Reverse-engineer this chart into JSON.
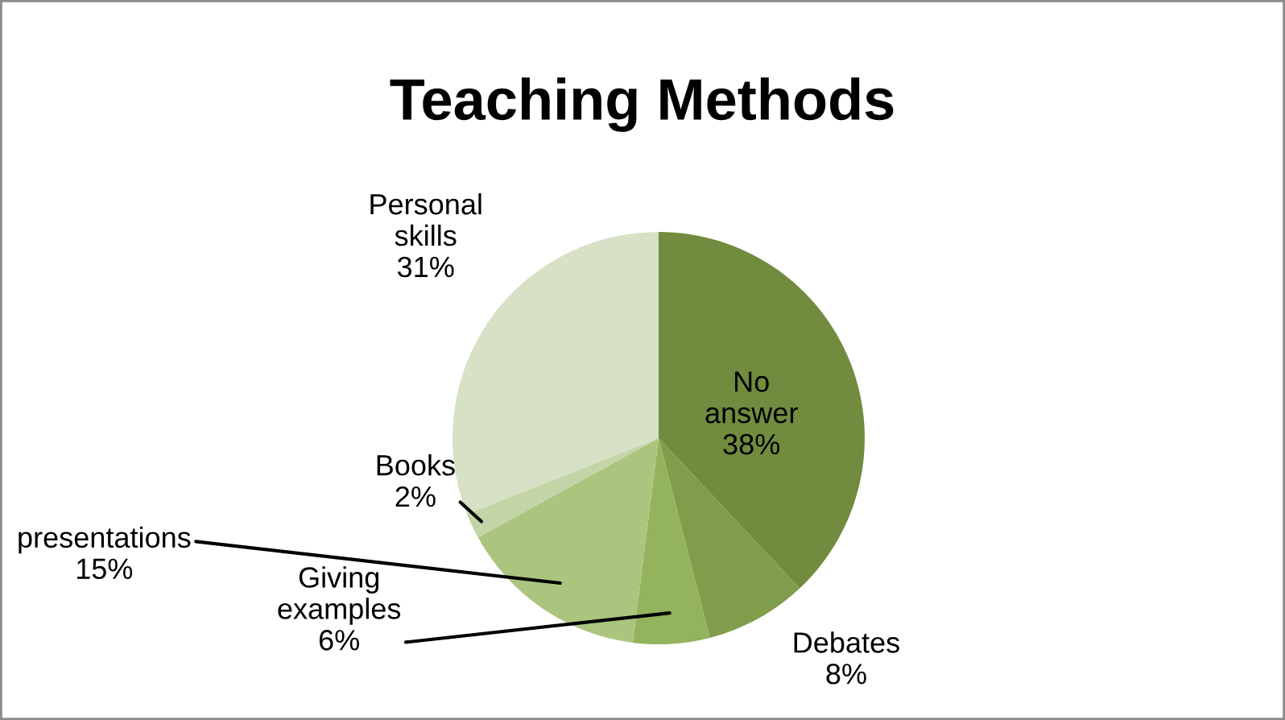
{
  "chart_data": {
    "type": "pie",
    "title": "Teaching Methods",
    "categories": [
      "No answer",
      "Debates",
      "Giving examples",
      "presentations",
      "Books",
      "Personal skills"
    ],
    "values": [
      38,
      8,
      6,
      15,
      2,
      31
    ],
    "colors": [
      "#718b3f",
      "#809d4b",
      "#93b35c",
      "#abc57f",
      "#c3d4a6",
      "#d7e1c5"
    ],
    "value_labels": [
      "38%",
      "8%",
      "6%",
      "15%",
      "2%",
      "31%"
    ],
    "legend": false
  }
}
